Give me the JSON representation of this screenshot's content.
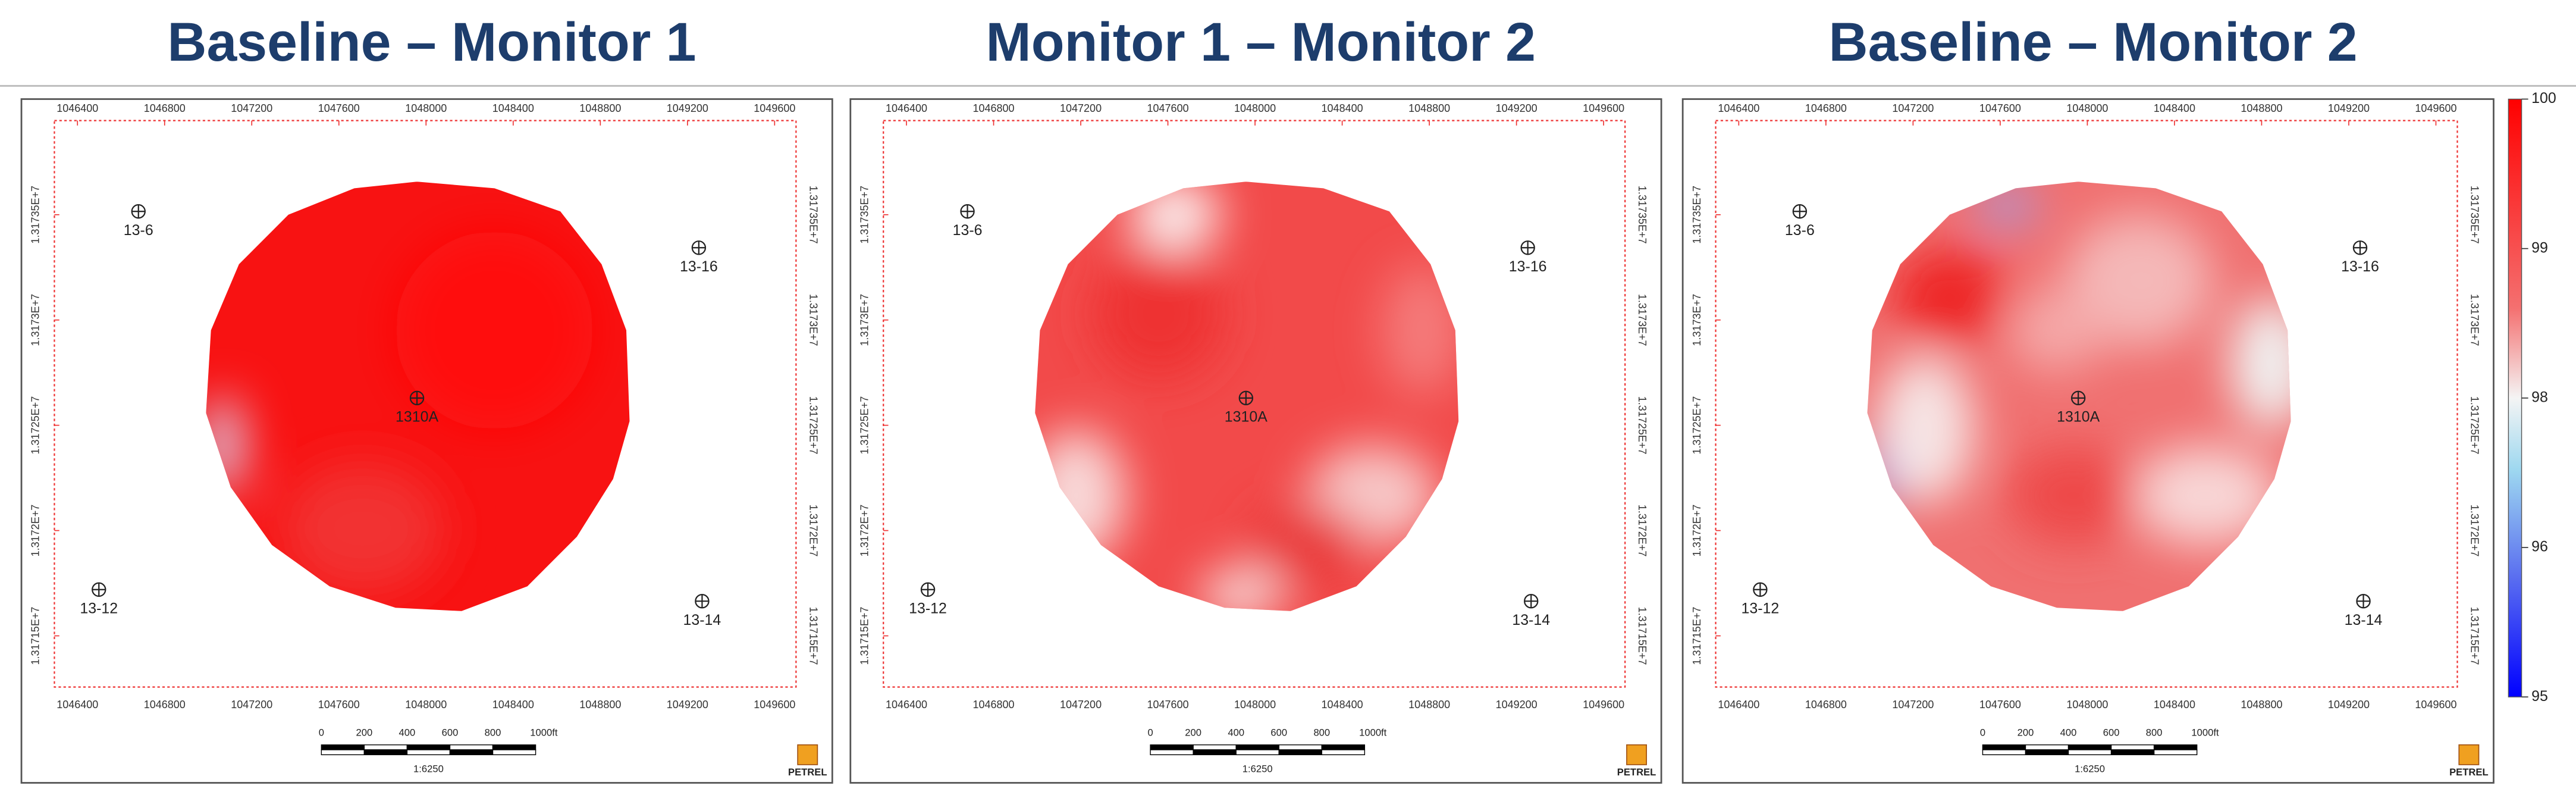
{
  "panels": [
    {
      "title": "Baseline – Monitor 1"
    },
    {
      "title": "Monitor 1 – Monitor 2"
    },
    {
      "title": "Baseline – Monitor 2"
    }
  ],
  "x_ticks": [
    1046400,
    1046800,
    1047200,
    1047600,
    1048000,
    1048400,
    1048800,
    1049200,
    1049600
  ],
  "y_ticks": [
    {
      "value": 13173500,
      "label": "1.31735E+7"
    },
    {
      "value": 13173000,
      "label": "1.3173E+7"
    },
    {
      "value": 13172500,
      "label": "1.31725E+7"
    },
    {
      "value": 13172000,
      "label": "1.3172E+7"
    },
    {
      "value": 13171500,
      "label": "1.31715E+7"
    }
  ],
  "wells": [
    "13-6",
    "13-16",
    "1310A",
    "13-12",
    "13-14"
  ],
  "scale_bar": {
    "labels": [
      "0",
      "200",
      "400",
      "600",
      "800",
      "1000ft"
    ],
    "ratio": "1:6250"
  },
  "logo": "PETREL",
  "colorbar": {
    "ticks": [
      100,
      99,
      98,
      96,
      95
    ]
  }
}
